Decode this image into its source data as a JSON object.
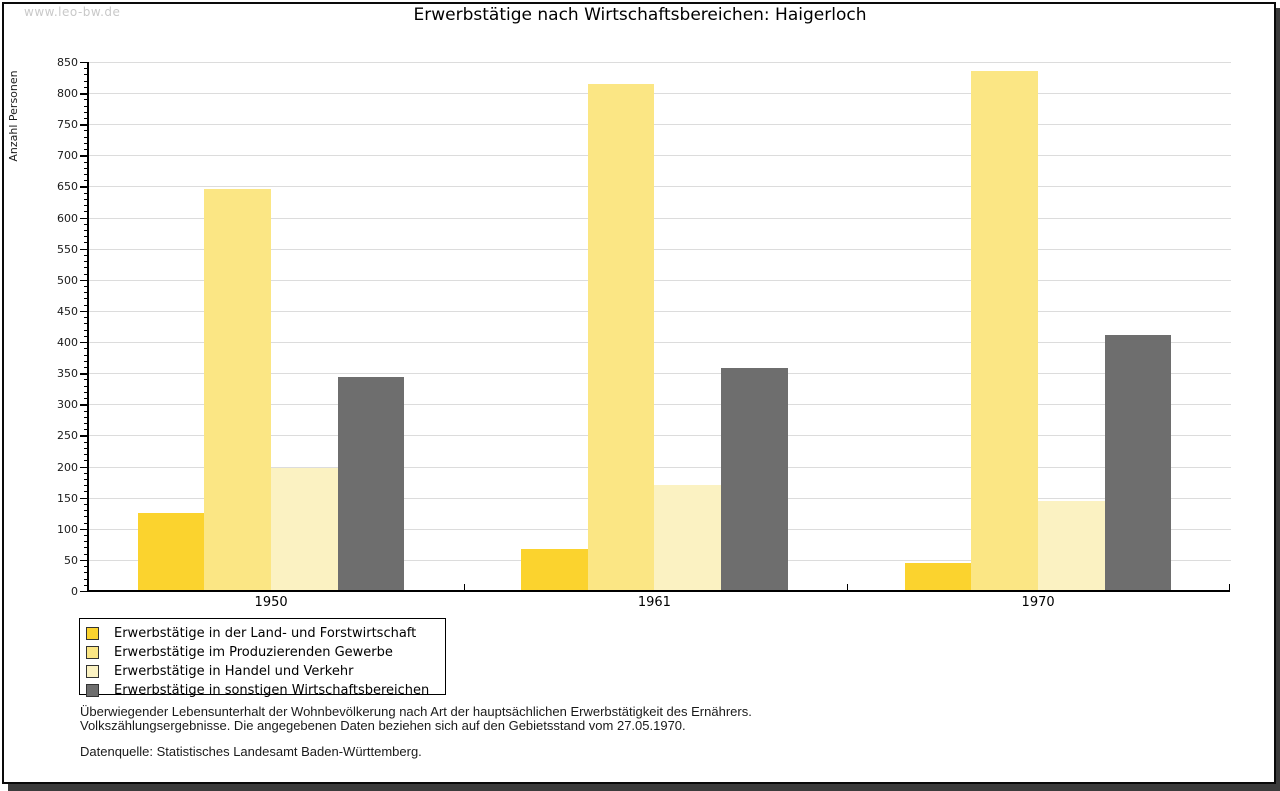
{
  "watermark": "www.leo-bw.de",
  "title": "Erwerbstätige nach Wirtschaftsbereichen: Haigerloch",
  "y_axis_label": "Anzahl Personen",
  "chart_data": {
    "type": "bar",
    "title": "Erwerbstätige nach Wirtschaftsbereichen: Haigerloch",
    "xlabel": "",
    "ylabel": "Anzahl Personen",
    "categories": [
      "1950",
      "1961",
      "1970"
    ],
    "series": [
      {
        "name": "Erwerbstätige in der Land- und Forstwirtschaft",
        "color": "#FBD32E",
        "values": [
          125,
          68,
          45
        ]
      },
      {
        "name": "Erwerbstätige im Produzierenden Gewerbe",
        "color": "#FBE684",
        "values": [
          646,
          815,
          836
        ]
      },
      {
        "name": "Erwerbstätige in Handel und Verkehr",
        "color": "#FBF2C2",
        "values": [
          197,
          170,
          145
        ]
      },
      {
        "name": "Erwerbstätige in sonstigen Wirtschaftsbereichen",
        "color": "#6E6E6E",
        "values": [
          344,
          359,
          411
        ]
      }
    ],
    "ylim": [
      0,
      850
    ],
    "ytick_step": 50,
    "ytick_minor_step": 10,
    "grid": "horizontal",
    "legend_position": "bottom-left",
    "gridline_color": "#dcdcdc"
  },
  "footnotes": {
    "line1": "Überwiegender Lebensunterhalt der Wohnbevölkerung nach Art der hauptsächlichen Erwerbstätigkeit des Ernährers.",
    "line2": "Volkszählungsergebnisse. Die angegebenen Daten beziehen sich auf den Gebietsstand vom 27.05.1970.",
    "source": "Datenquelle: Statistisches Landesamt Baden-Württemberg."
  }
}
